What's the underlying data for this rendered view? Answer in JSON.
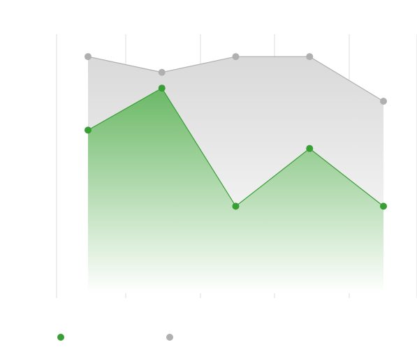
{
  "chart_data": {
    "type": "area",
    "categories": [
      "",
      "",
      "",
      "",
      ""
    ],
    "ylim": [
      0,
      100
    ],
    "grid": "vertical",
    "legend": "bottom-left",
    "series": [
      {
        "name": "",
        "color": "#3a9e36",
        "values": [
          64,
          80,
          35,
          57,
          35
        ]
      },
      {
        "name": "",
        "color": "#b0b0b0",
        "values": [
          92,
          86,
          92,
          92,
          75
        ]
      }
    ]
  }
}
